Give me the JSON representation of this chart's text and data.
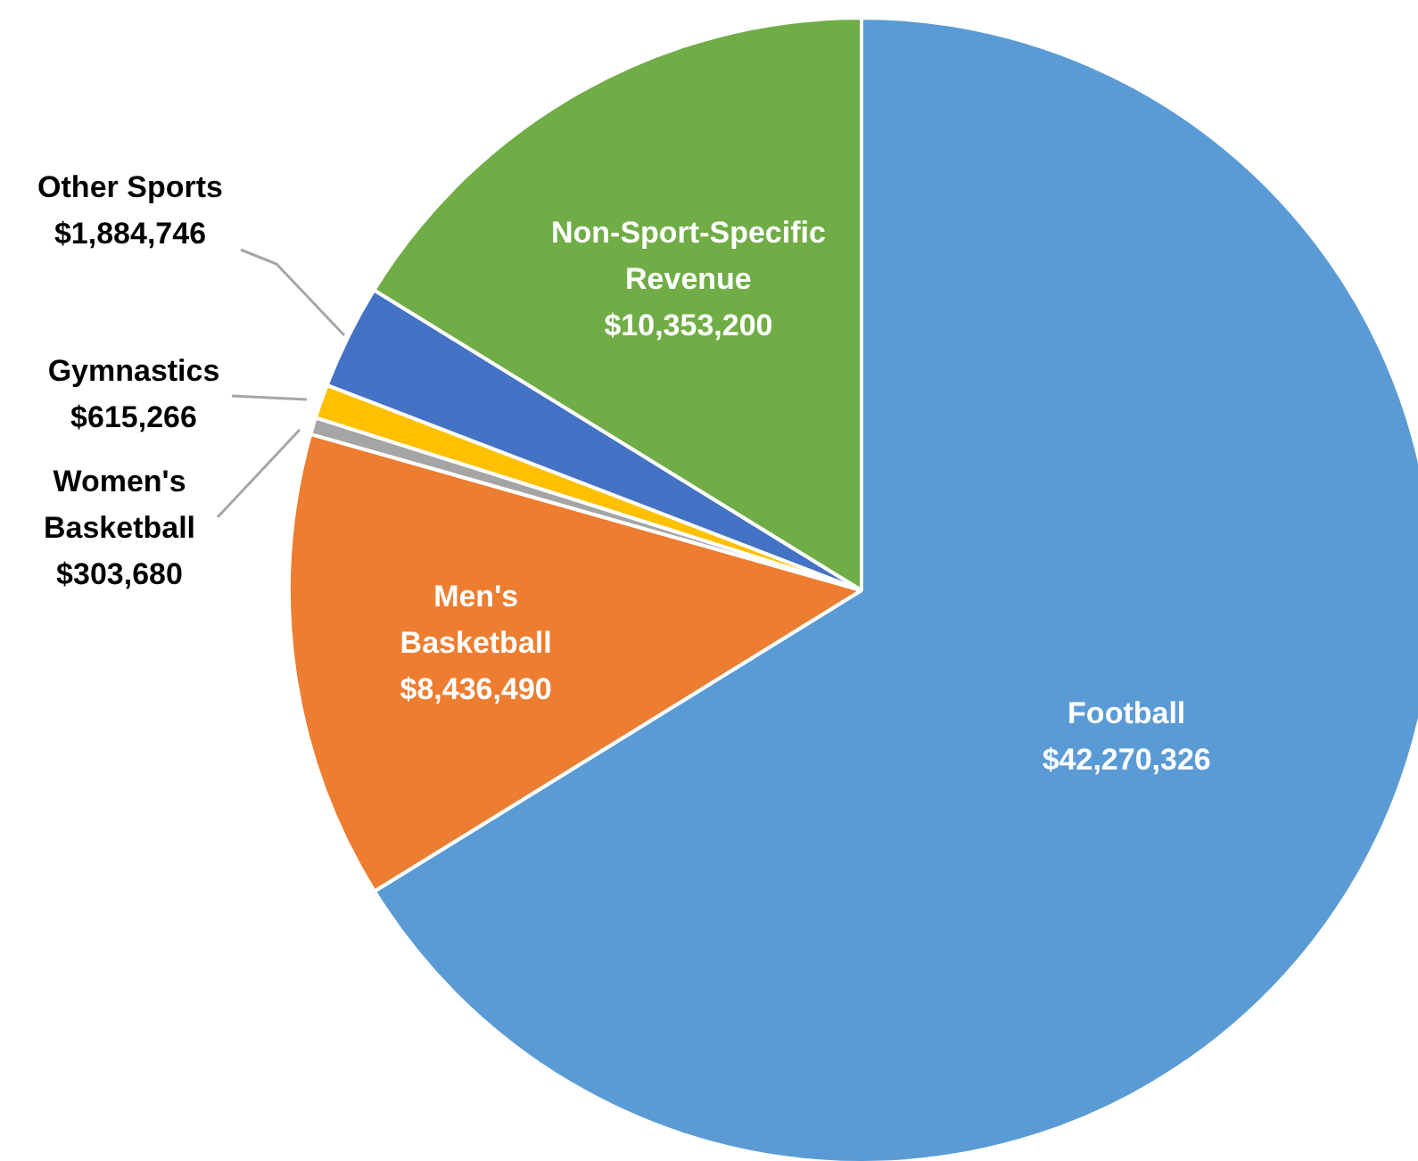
{
  "chart_data": {
    "type": "pie",
    "categories": [
      "Football",
      "Men's Basketball",
      "Women's Basketball",
      "Gymnastics",
      "Other Sports",
      "Non-Sport-Specific Revenue"
    ],
    "values": [
      42270326,
      8436490,
      303680,
      615266,
      1884746,
      10353200
    ],
    "value_labels": [
      "$42,270,326",
      "$8,436,490",
      "$303,680",
      "$615,266",
      "$1,884,746",
      "$10,353,200"
    ],
    "colors": [
      "#5b9bd5",
      "#ed7d31",
      "#a5a5a5",
      "#ffc000",
      "#4472c4",
      "#70ad47"
    ],
    "legend": false
  }
}
